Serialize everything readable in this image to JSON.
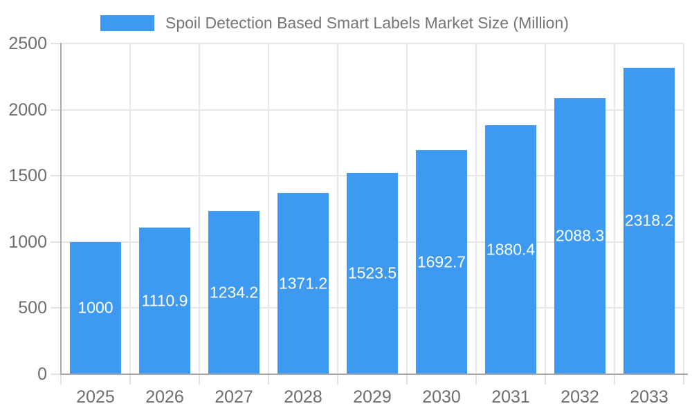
{
  "legend": {
    "label": "Spoil Detection Based Smart Labels Market Size (Million)",
    "swatch_color": "#3d9af0"
  },
  "chart_data": {
    "type": "bar",
    "title": "Spoil Detection Based Smart Labels Market Size (Million)",
    "categories": [
      "2025",
      "2026",
      "2027",
      "2028",
      "2029",
      "2030",
      "2031",
      "2032",
      "2033"
    ],
    "values": [
      1000,
      1110.9,
      1234.2,
      1371.2,
      1523.5,
      1692.7,
      1880.4,
      2088.3,
      2318.2
    ],
    "value_labels": [
      "1000",
      "1110.9",
      "1234.2",
      "1371.2",
      "1523.5",
      "1692.7",
      "1880.4",
      "2088.3",
      "2318.2"
    ],
    "xlabel": "",
    "ylabel": "",
    "ylim": [
      0,
      2500
    ],
    "yticks": [
      0,
      500,
      1000,
      1500,
      2000,
      2500
    ],
    "grid": true,
    "legend_position": "top",
    "bar_color": "#3d9af0",
    "bar_label_color": "#ffffff",
    "axis_color": "#a9a9a9",
    "gridline_color": "#e7e7e7",
    "tick_label_color": "#6e6e6e",
    "title_color": "#757575",
    "background_color": "#ffffff"
  }
}
